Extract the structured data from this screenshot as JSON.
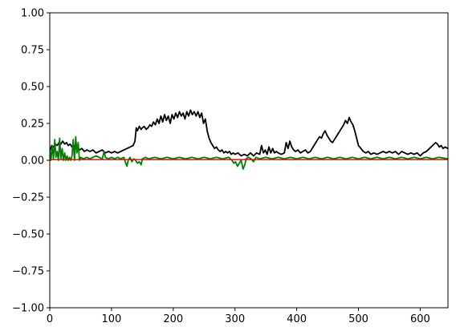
{
  "chart_data": {
    "type": "line",
    "xlim": [
      0,
      645
    ],
    "ylim": [
      -1.0,
      1.0
    ],
    "x_ticks": [
      0,
      100,
      200,
      300,
      400,
      500,
      600
    ],
    "x_tick_labels": [
      "0",
      "100",
      "200",
      "300",
      "400",
      "500",
      "600"
    ],
    "y_ticks": [
      -1.0,
      -0.75,
      -0.5,
      -0.25,
      0.0,
      0.25,
      0.5,
      0.75,
      1.0
    ],
    "y_tick_labels": [
      "−1.00",
      "−0.75",
      "−0.50",
      "−0.25",
      "0.00",
      "0.25",
      "0.50",
      "0.75",
      "1.00"
    ],
    "grid": false,
    "legend": false,
    "series": [
      {
        "color": "#000000",
        "points": [
          [
            0,
            0.06
          ],
          [
            3,
            0.1
          ],
          [
            6,
            0.09
          ],
          [
            9,
            0.11
          ],
          [
            12,
            0.1
          ],
          [
            15,
            0.12
          ],
          [
            18,
            0.11
          ],
          [
            21,
            0.13
          ],
          [
            24,
            0.11
          ],
          [
            27,
            0.12
          ],
          [
            30,
            0.1
          ],
          [
            33,
            0.11
          ],
          [
            36,
            0.09
          ],
          [
            39,
            0.1
          ],
          [
            42,
            0.08
          ],
          [
            45,
            0.09
          ],
          [
            48,
            0.07
          ],
          [
            52,
            0.08
          ],
          [
            56,
            0.06
          ],
          [
            60,
            0.07
          ],
          [
            65,
            0.06
          ],
          [
            70,
            0.07
          ],
          [
            75,
            0.05
          ],
          [
            80,
            0.06
          ],
          [
            85,
            0.07
          ],
          [
            90,
            0.05
          ],
          [
            95,
            0.06
          ],
          [
            100,
            0.05
          ],
          [
            105,
            0.06
          ],
          [
            110,
            0.05
          ],
          [
            115,
            0.06
          ],
          [
            120,
            0.07
          ],
          [
            125,
            0.08
          ],
          [
            130,
            0.09
          ],
          [
            135,
            0.1
          ],
          [
            138,
            0.13
          ],
          [
            140,
            0.22
          ],
          [
            142,
            0.2
          ],
          [
            145,
            0.23
          ],
          [
            148,
            0.21
          ],
          [
            150,
            0.22
          ],
          [
            153,
            0.23
          ],
          [
            156,
            0.21
          ],
          [
            159,
            0.22
          ],
          [
            162,
            0.24
          ],
          [
            165,
            0.23
          ],
          [
            168,
            0.26
          ],
          [
            171,
            0.24
          ],
          [
            174,
            0.28
          ],
          [
            177,
            0.25
          ],
          [
            180,
            0.3
          ],
          [
            183,
            0.26
          ],
          [
            186,
            0.31
          ],
          [
            189,
            0.27
          ],
          [
            192,
            0.3
          ],
          [
            195,
            0.25
          ],
          [
            198,
            0.31
          ],
          [
            201,
            0.28
          ],
          [
            204,
            0.32
          ],
          [
            207,
            0.29
          ],
          [
            210,
            0.33
          ],
          [
            213,
            0.3
          ],
          [
            216,
            0.32
          ],
          [
            219,
            0.28
          ],
          [
            222,
            0.33
          ],
          [
            225,
            0.3
          ],
          [
            228,
            0.34
          ],
          [
            231,
            0.31
          ],
          [
            234,
            0.33
          ],
          [
            237,
            0.3
          ],
          [
            240,
            0.33
          ],
          [
            243,
            0.29
          ],
          [
            246,
            0.32
          ],
          [
            249,
            0.25
          ],
          [
            252,
            0.28
          ],
          [
            255,
            0.2
          ],
          [
            258,
            0.15
          ],
          [
            261,
            0.12
          ],
          [
            264,
            0.1
          ],
          [
            267,
            0.08
          ],
          [
            270,
            0.09
          ],
          [
            273,
            0.07
          ],
          [
            276,
            0.06
          ],
          [
            279,
            0.07
          ],
          [
            282,
            0.05
          ],
          [
            285,
            0.06
          ],
          [
            288,
            0.05
          ],
          [
            291,
            0.06
          ],
          [
            294,
            0.04
          ],
          [
            297,
            0.05
          ],
          [
            300,
            0.04
          ],
          [
            305,
            0.05
          ],
          [
            310,
            0.03
          ],
          [
            315,
            0.04
          ],
          [
            320,
            0.03
          ],
          [
            325,
            0.05
          ],
          [
            330,
            0.03
          ],
          [
            335,
            0.05
          ],
          [
            340,
            0.04
          ],
          [
            343,
            0.1
          ],
          [
            346,
            0.05
          ],
          [
            349,
            0.07
          ],
          [
            352,
            0.04
          ],
          [
            355,
            0.09
          ],
          [
            358,
            0.05
          ],
          [
            361,
            0.08
          ],
          [
            364,
            0.05
          ],
          [
            367,
            0.06
          ],
          [
            370,
            0.05
          ],
          [
            375,
            0.04
          ],
          [
            380,
            0.05
          ],
          [
            383,
            0.12
          ],
          [
            386,
            0.08
          ],
          [
            389,
            0.13
          ],
          [
            392,
            0.09
          ],
          [
            395,
            0.07
          ],
          [
            398,
            0.06
          ],
          [
            402,
            0.07
          ],
          [
            406,
            0.05
          ],
          [
            410,
            0.06
          ],
          [
            414,
            0.07
          ],
          [
            418,
            0.05
          ],
          [
            422,
            0.06
          ],
          [
            425,
            0.08
          ],
          [
            428,
            0.1
          ],
          [
            431,
            0.12
          ],
          [
            434,
            0.14
          ],
          [
            437,
            0.16
          ],
          [
            440,
            0.15
          ],
          [
            443,
            0.18
          ],
          [
            446,
            0.2
          ],
          [
            449,
            0.17
          ],
          [
            452,
            0.15
          ],
          [
            455,
            0.13
          ],
          [
            458,
            0.12
          ],
          [
            461,
            0.14
          ],
          [
            464,
            0.16
          ],
          [
            467,
            0.18
          ],
          [
            470,
            0.2
          ],
          [
            473,
            0.22
          ],
          [
            476,
            0.24
          ],
          [
            479,
            0.27
          ],
          [
            482,
            0.25
          ],
          [
            485,
            0.29
          ],
          [
            488,
            0.26
          ],
          [
            491,
            0.24
          ],
          [
            494,
            0.2
          ],
          [
            497,
            0.15
          ],
          [
            500,
            0.1
          ],
          [
            504,
            0.08
          ],
          [
            508,
            0.06
          ],
          [
            512,
            0.05
          ],
          [
            516,
            0.06
          ],
          [
            520,
            0.04
          ],
          [
            525,
            0.05
          ],
          [
            530,
            0.04
          ],
          [
            535,
            0.05
          ],
          [
            540,
            0.06
          ],
          [
            545,
            0.05
          ],
          [
            550,
            0.06
          ],
          [
            555,
            0.05
          ],
          [
            560,
            0.06
          ],
          [
            565,
            0.04
          ],
          [
            570,
            0.06
          ],
          [
            575,
            0.05
          ],
          [
            580,
            0.04
          ],
          [
            585,
            0.05
          ],
          [
            590,
            0.04
          ],
          [
            595,
            0.05
          ],
          [
            600,
            0.03
          ],
          [
            605,
            0.05
          ],
          [
            610,
            0.06
          ],
          [
            615,
            0.08
          ],
          [
            620,
            0.1
          ],
          [
            625,
            0.12
          ],
          [
            628,
            0.11
          ],
          [
            631,
            0.09
          ],
          [
            634,
            0.1
          ],
          [
            637,
            0.08
          ],
          [
            640,
            0.09
          ],
          [
            645,
            0.08
          ]
        ]
      },
      {
        "color": "#008000",
        "points": [
          [
            0,
            0.08
          ],
          [
            2,
            0.0
          ],
          [
            4,
            0.1
          ],
          [
            6,
            0.01
          ],
          [
            8,
            0.14
          ],
          [
            10,
            0.02
          ],
          [
            12,
            0.06
          ],
          [
            14,
            0.0
          ],
          [
            16,
            0.15
          ],
          [
            18,
            0.01
          ],
          [
            20,
            0.08
          ],
          [
            22,
            0.0
          ],
          [
            24,
            0.05
          ],
          [
            26,
            0.0
          ],
          [
            28,
            0.03
          ],
          [
            30,
            0.0
          ],
          [
            32,
            0.02
          ],
          [
            34,
            0.0
          ],
          [
            36,
            0.03
          ],
          [
            38,
            0.14
          ],
          [
            40,
            0.0
          ],
          [
            42,
            0.16
          ],
          [
            44,
            0.05
          ],
          [
            46,
            0.12
          ],
          [
            48,
            0.0
          ],
          [
            50,
            0.02
          ],
          [
            55,
            0.01
          ],
          [
            60,
            0.02
          ],
          [
            65,
            0.01
          ],
          [
            70,
            0.02
          ],
          [
            75,
            0.03
          ],
          [
            80,
            0.02
          ],
          [
            85,
            0.01
          ],
          [
            88,
            0.06
          ],
          [
            90,
            0.02
          ],
          [
            95,
            0.01
          ],
          [
            100,
            0.02
          ],
          [
            105,
            0.01
          ],
          [
            110,
            0.02
          ],
          [
            115,
            0.01
          ],
          [
            120,
            0.02
          ],
          [
            123,
            -0.02
          ],
          [
            125,
            -0.04
          ],
          [
            127,
            0.0
          ],
          [
            130,
            0.02
          ],
          [
            133,
            -0.01
          ],
          [
            136,
            0.01
          ],
          [
            139,
            0.0
          ],
          [
            142,
            -0.02
          ],
          [
            145,
            -0.01
          ],
          [
            148,
            -0.03
          ],
          [
            150,
            0.01
          ],
          [
            155,
            0.02
          ],
          [
            160,
            0.01
          ],
          [
            170,
            0.02
          ],
          [
            180,
            0.01
          ],
          [
            190,
            0.02
          ],
          [
            200,
            0.01
          ],
          [
            210,
            0.02
          ],
          [
            220,
            0.01
          ],
          [
            230,
            0.02
          ],
          [
            240,
            0.01
          ],
          [
            250,
            0.02
          ],
          [
            260,
            0.01
          ],
          [
            270,
            0.02
          ],
          [
            280,
            0.01
          ],
          [
            290,
            0.02
          ],
          [
            295,
            0.0
          ],
          [
            298,
            -0.02
          ],
          [
            301,
            -0.01
          ],
          [
            304,
            -0.04
          ],
          [
            307,
            -0.02
          ],
          [
            310,
            0.0
          ],
          [
            313,
            -0.06
          ],
          [
            316,
            -0.03
          ],
          [
            318,
            0.01
          ],
          [
            322,
            0.02
          ],
          [
            326,
            0.01
          ],
          [
            330,
            -0.01
          ],
          [
            334,
            0.02
          ],
          [
            340,
            0.01
          ],
          [
            350,
            0.02
          ],
          [
            360,
            0.01
          ],
          [
            370,
            0.02
          ],
          [
            380,
            0.01
          ],
          [
            390,
            0.02
          ],
          [
            400,
            0.01
          ],
          [
            410,
            0.02
          ],
          [
            420,
            0.01
          ],
          [
            430,
            0.02
          ],
          [
            440,
            0.01
          ],
          [
            450,
            0.02
          ],
          [
            460,
            0.01
          ],
          [
            470,
            0.02
          ],
          [
            480,
            0.01
          ],
          [
            490,
            0.02
          ],
          [
            500,
            0.01
          ],
          [
            510,
            0.02
          ],
          [
            520,
            0.01
          ],
          [
            530,
            0.02
          ],
          [
            540,
            0.01
          ],
          [
            550,
            0.02
          ],
          [
            560,
            0.01
          ],
          [
            570,
            0.02
          ],
          [
            580,
            0.01
          ],
          [
            590,
            0.02
          ],
          [
            600,
            0.01
          ],
          [
            610,
            0.02
          ],
          [
            620,
            0.01
          ],
          [
            630,
            0.02
          ],
          [
            645,
            0.01
          ]
        ]
      },
      {
        "color": "#ff0000",
        "points": [
          [
            0,
            0.005
          ],
          [
            645,
            0.005
          ]
        ]
      }
    ]
  }
}
